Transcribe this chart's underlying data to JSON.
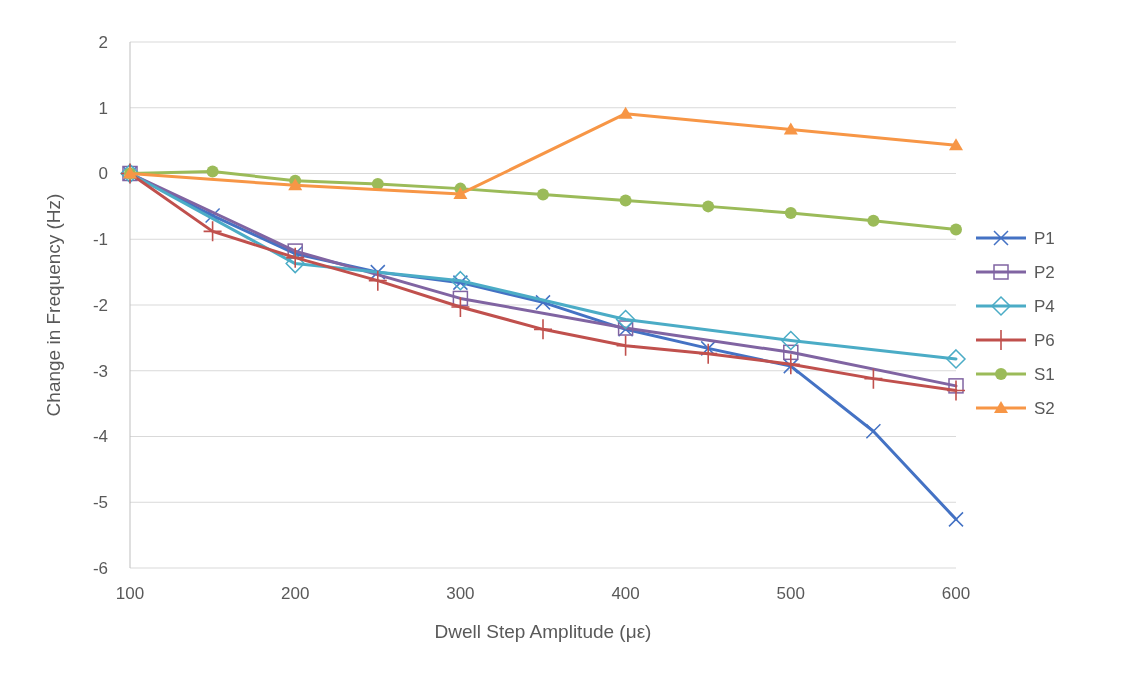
{
  "chart_data": {
    "type": "line",
    "xlabel": "Dwell Step Amplitude (με)",
    "ylabel": "Change in Frequency (Hz)",
    "xlim": [
      100,
      600
    ],
    "xticks": [
      100,
      200,
      300,
      400,
      500,
      600
    ],
    "ylim": [
      -6,
      2
    ],
    "yticks": [
      -6,
      -5,
      -4,
      -3,
      -2,
      -1,
      0,
      1,
      2
    ],
    "grid": "y",
    "legend": "right",
    "series": [
      {
        "name": "P1",
        "color": "#4472c4",
        "marker": "cross",
        "x": [
          100,
          150,
          200,
          250,
          300,
          350,
          400,
          450,
          500,
          550,
          600
        ],
        "values": [
          0,
          -0.64,
          -1.22,
          -1.5,
          -1.66,
          -1.96,
          -2.37,
          -2.66,
          -2.93,
          -3.92,
          -5.26
        ]
      },
      {
        "name": "P2",
        "color": "#8064a2",
        "marker": "square",
        "x": [
          100,
          200,
          300,
          400,
          500,
          600
        ],
        "values": [
          0,
          -1.18,
          -1.9,
          -2.35,
          -2.72,
          -3.23
        ]
      },
      {
        "name": "P4",
        "color": "#4bacc6",
        "marker": "diamond",
        "x": [
          100,
          200,
          300,
          400,
          500,
          600
        ],
        "values": [
          0,
          -1.37,
          -1.63,
          -2.22,
          -2.54,
          -2.82
        ]
      },
      {
        "name": "P6",
        "color": "#c0504d",
        "marker": "plus",
        "x": [
          100,
          150,
          200,
          250,
          300,
          350,
          400,
          450,
          500,
          550,
          600
        ],
        "values": [
          0,
          -0.88,
          -1.28,
          -1.63,
          -2.03,
          -2.37,
          -2.62,
          -2.74,
          -2.9,
          -3.12,
          -3.3
        ]
      },
      {
        "name": "S1",
        "color": "#9bbb59",
        "marker": "circle",
        "x": [
          100,
          150,
          200,
          250,
          300,
          350,
          400,
          450,
          500,
          550,
          600
        ],
        "values": [
          0,
          0.03,
          -0.11,
          -0.16,
          -0.23,
          -0.32,
          -0.41,
          -0.5,
          -0.6,
          -0.72,
          -0.85
        ]
      },
      {
        "name": "S2",
        "color": "#f79646",
        "marker": "triangle",
        "x": [
          100,
          200,
          300,
          400,
          500,
          600
        ],
        "values": [
          0,
          -0.18,
          -0.31,
          0.91,
          0.67,
          0.43
        ]
      }
    ]
  }
}
